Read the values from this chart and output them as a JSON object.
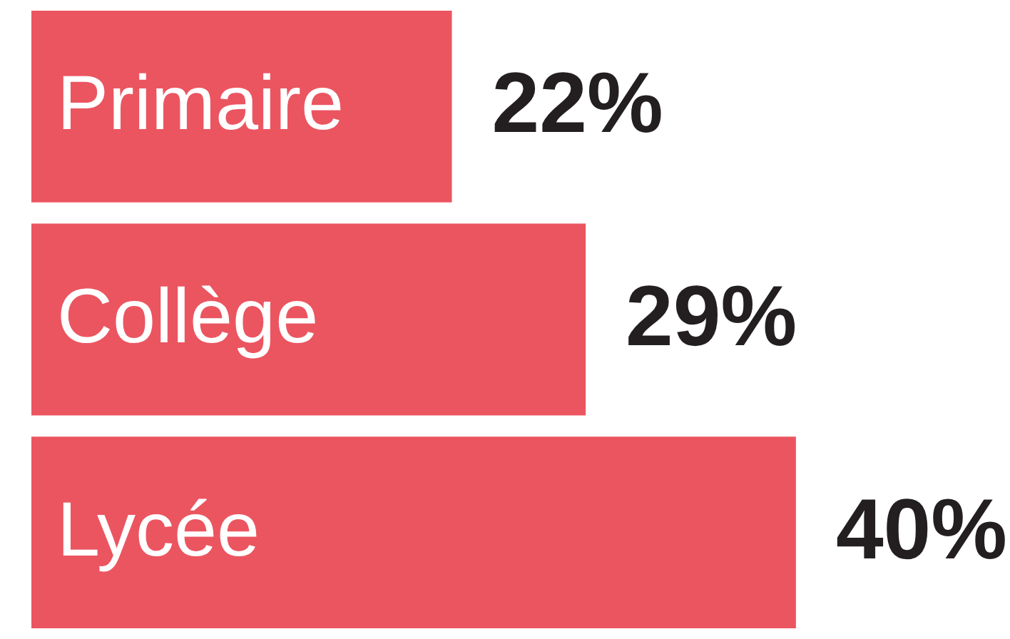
{
  "chart_data": {
    "type": "bar",
    "orientation": "horizontal",
    "categories": [
      "Primaire",
      "Collège",
      "Lycée"
    ],
    "values": [
      22,
      29,
      40
    ],
    "value_labels": [
      "22%",
      "29%",
      "40%"
    ],
    "color": "#eb5560"
  }
}
